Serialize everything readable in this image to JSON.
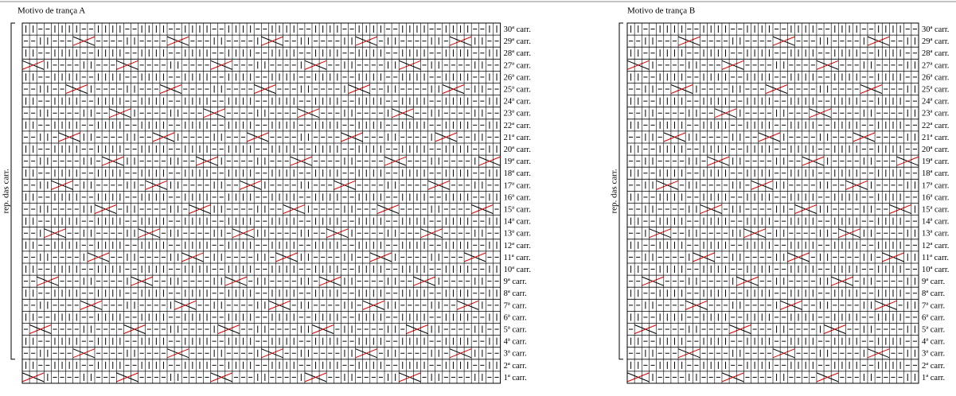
{
  "charts": [
    {
      "title": "Motivo de trança A",
      "side_label": "rep. das carr.",
      "rows": [
        "30ª carr.",
        "29ª carr.",
        "28ª carr.",
        "27ª carr.",
        "26ª carr.",
        "25ª carr.",
        "24ª carr.",
        "23ª carr.",
        "22ª carr.",
        "21ª carr.",
        "20ª carr.",
        "19ª carr.",
        "18ª carr.",
        "17ª carr.",
        "16ª carr.",
        "15ª carr.",
        "14ª carr.",
        "13ª carr.",
        "12ª carr.",
        "11ª carr.",
        "10ª carr.",
        "9ª carr.",
        "8ª carr.",
        "7ª carr.",
        "6ª carr.",
        "5ª carr.",
        "4ª carr.",
        "3ª carr.",
        "2ª carr.",
        "1ª carr."
      ]
    },
    {
      "title": "Motivo de trança B",
      "side_label": "rep. das carr.",
      "rows": [
        "30ª carr.",
        "29ª carr.",
        "28ª carr.",
        "27ª carr.",
        "26ª carr.",
        "25ª carr.",
        "24ª carr.",
        "23ª carr.",
        "22ª carr.",
        "21ª carr.",
        "20ª carr.",
        "19ª carr.",
        "18ª carr.",
        "17ª carr.",
        "16ª carr.",
        "15ª carr.",
        "14ª carr.",
        "13ª carr.",
        "12ª carr.",
        "11ª carr.",
        "10ª carr.",
        "9ª carr.",
        "8ª carr.",
        "7ª carr.",
        "6ª carr.",
        "5ª carr.",
        "4ª carr.",
        "3ª carr.",
        "2ª carr.",
        "1ª carr."
      ]
    }
  ]
}
